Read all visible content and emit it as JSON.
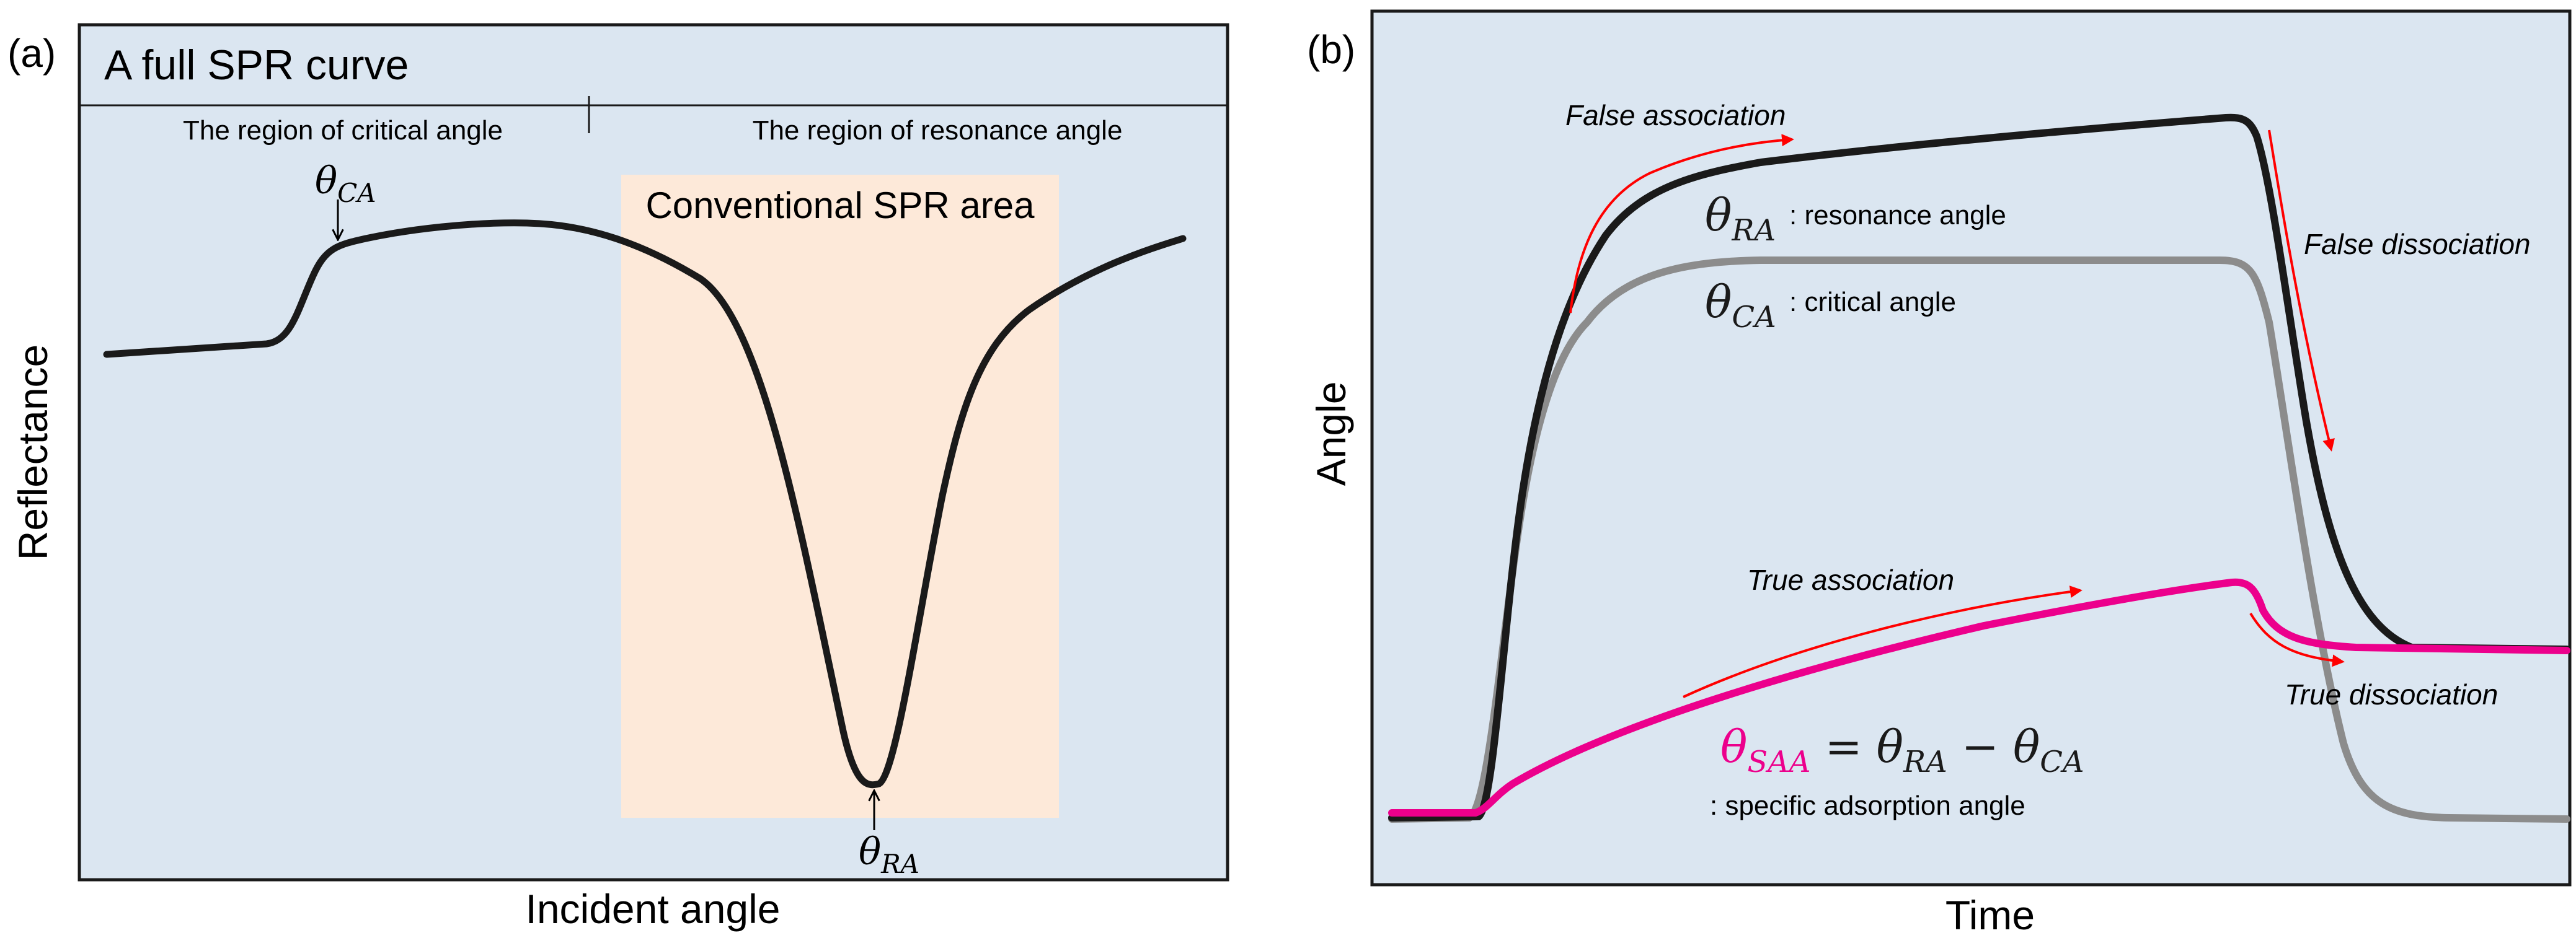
{
  "panels": {
    "a": {
      "panel_label": "(a)",
      "box_title": "A full SPR curve",
      "region_left": "The region of critical angle",
      "region_right": "The region of resonance angle",
      "highlight_label": "Conventional SPR area",
      "ca_marker": {
        "symbol": "θ",
        "subscript": "CA"
      },
      "ra_marker": {
        "symbol": "θ",
        "subscript": "RA"
      },
      "xlabel": "Incident angle",
      "ylabel": "Reflectance"
    },
    "b": {
      "panel_label": "(b)",
      "xlabel": "Time",
      "ylabel": "Angle",
      "ra_legend": {
        "symbol": "θ",
        "subscript": "RA",
        "text": ": resonance angle"
      },
      "ca_legend": {
        "symbol": "θ",
        "subscript": "CA",
        "text": ": critical angle"
      },
      "annotations": {
        "false_association": "False association",
        "false_dissociation": "False dissociation",
        "true_association": "True association",
        "true_dissociation": "True dissociation"
      },
      "equation": {
        "lhs_sub": "SAA",
        "eq_and_ra": " = θ",
        "ra_sub": "RA",
        "minus": " − θ",
        "ca_sub": "CA",
        "theta": "θ"
      },
      "equation_caption": ": specific adsorption angle"
    }
  },
  "colors": {
    "panel_bg": "#dbe6f1",
    "highlight": "#fde9d9",
    "curve_dark": "#1a1a1a",
    "curve_gray": "#8c8c8c",
    "curve_pink": "#ec008c",
    "arrow_red": "#ff0000"
  },
  "chart_data": [
    {
      "type": "line",
      "panel": "a",
      "title": "A full SPR curve",
      "xlabel": "Incident angle",
      "ylabel": "Reflectance",
      "grid": false,
      "series": [
        {
          "name": "",
          "x": [
            0,
            0.15,
            0.21,
            0.26,
            0.4,
            0.49,
            0.58,
            0.64,
            0.68,
            0.72,
            0.76,
            0.82,
            1.0
          ],
          "y": [
            0.71,
            0.74,
            0.86,
            0.9,
            0.91,
            0.88,
            0.6,
            0.18,
            0.05,
            0.2,
            0.55,
            0.7,
            0.83
          ]
        }
      ]
    },
    {
      "type": "line",
      "panel": "b",
      "xlabel": "Time",
      "ylabel": "Angle",
      "grid": false,
      "series": [
        {
          "name": "θRA",
          "x": [
            0,
            0.06,
            0.1,
            0.13,
            0.2,
            0.4,
            0.7,
            0.74,
            0.77,
            0.82,
            0.86,
            1.0
          ],
          "y": [
            0.01,
            0.02,
            0.6,
            0.78,
            0.86,
            0.91,
            0.96,
            0.94,
            0.7,
            0.35,
            0.23,
            0.23
          ]
        },
        {
          "name": "θCA",
          "x": [
            0,
            0.06,
            0.1,
            0.15,
            0.2,
            0.4,
            0.7,
            0.74,
            0.77,
            0.8,
            0.85,
            1.0
          ],
          "y": [
            0.01,
            0.02,
            0.5,
            0.71,
            0.74,
            0.74,
            0.74,
            0.7,
            0.4,
            0.15,
            0.02,
            0.01
          ]
        },
        {
          "name": "θSAA",
          "x": [
            0,
            0.06,
            0.08,
            0.2,
            0.4,
            0.6,
            0.7,
            0.72,
            0.76,
            0.85,
            1.0
          ],
          "y": [
            0.02,
            0.02,
            0.07,
            0.17,
            0.28,
            0.35,
            0.38,
            0.33,
            0.27,
            0.23,
            0.23
          ]
        }
      ]
    }
  ]
}
